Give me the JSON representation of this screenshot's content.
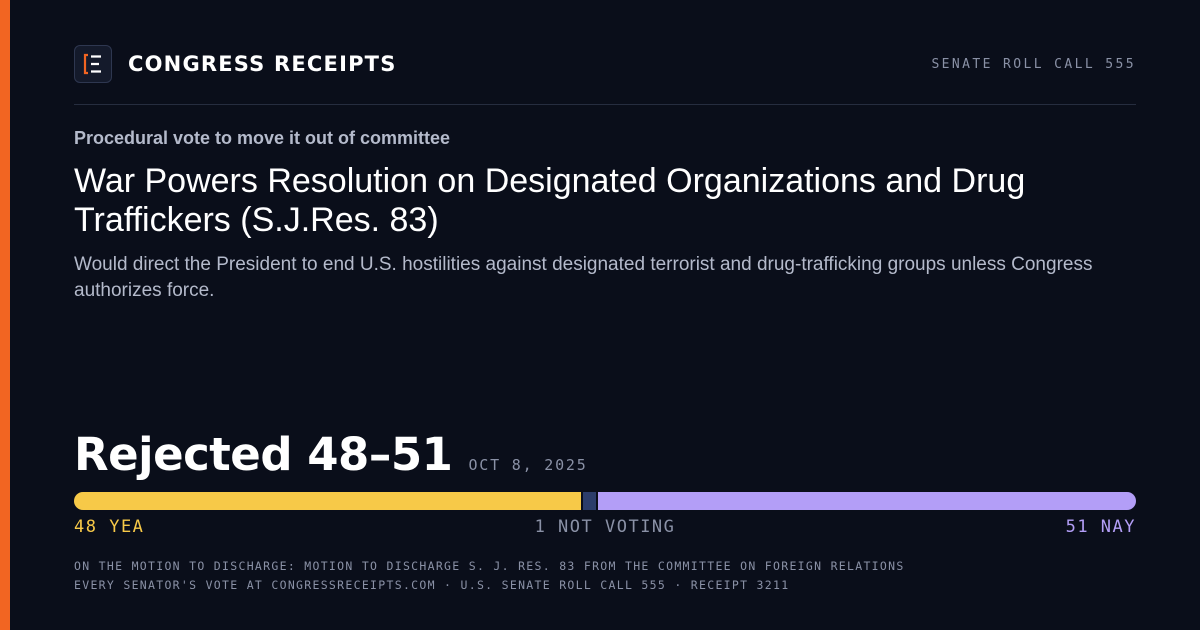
{
  "brand": {
    "name": "CONGRESS RECEIPTS",
    "logo_icon": "bracket-e-logo-icon",
    "accent_color": "#f26522"
  },
  "header": {
    "roll_call": "SENATE ROLL CALL 555"
  },
  "vote": {
    "kicker": "Procedural vote to move it out of committee",
    "title": "War Powers Resolution on Designated Organizations and Drug Traffickers (S.J.Res. 83)",
    "description": "Would direct the President to end U.S. hostilities against designated terrorist and drug-trafficking groups unless Congress authorizes force.",
    "result": "Rejected 48–51",
    "date": "OCT 8, 2025"
  },
  "tally": {
    "yea_count": 48,
    "not_voting_count": 1,
    "nay_count": 51,
    "yea_label": "48 YEA",
    "not_voting_label": "1 NOT VOTING",
    "nay_label": "51 NAY",
    "yea_color": "#f7c948",
    "not_voting_color": "#2c3d6b",
    "nay_color": "#b39ef7"
  },
  "footer": {
    "line1": "ON THE MOTION TO DISCHARGE: MOTION TO DISCHARGE S. J. RES. 83 FROM THE COMMITTEE ON FOREIGN RELATIONS",
    "line2": "EVERY SENATOR'S VOTE AT CONGRESSRECEIPTS.COM · U.S. SENATE ROLL CALL 555 · RECEIPT 3211"
  }
}
